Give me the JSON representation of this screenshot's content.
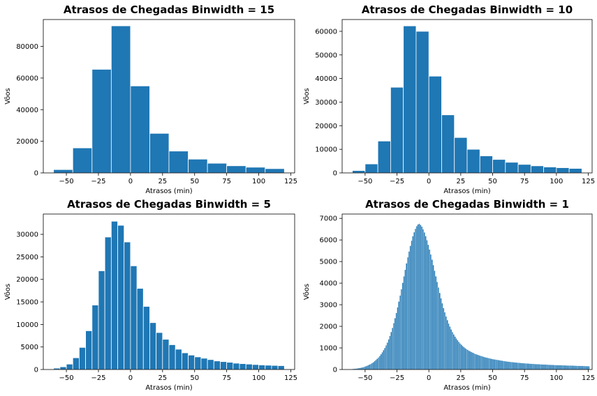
{
  "chart_data": [
    {
      "type": "bar",
      "title": "Atrasos de Chegadas Binwidth = 15",
      "xlabel": "Atrasos (min)",
      "ylabel": "Vôos",
      "bar_color": "#1f77b4",
      "edge_color": "#ffffff",
      "xlim": [
        -68,
        128
      ],
      "ylim": [
        0,
        97000
      ],
      "xticks": [
        -50,
        -25,
        0,
        25,
        50,
        75,
        100,
        125
      ],
      "yticks": [
        0,
        20000,
        40000,
        60000,
        80000
      ],
      "bins": {
        "start": -60,
        "width": 15
      },
      "values": [
        2100,
        15800,
        65500,
        93000,
        55000,
        25000,
        13800,
        8700,
        6100,
        4500,
        3600,
        2700
      ]
    },
    {
      "type": "bar",
      "title": "Atrasos de Chegadas Binwidth = 10",
      "xlabel": "Atrasos (min)",
      "ylabel": "Vôos",
      "bar_color": "#1f77b4",
      "edge_color": "#ffffff",
      "xlim": [
        -68,
        128
      ],
      "ylim": [
        0,
        65000
      ],
      "xticks": [
        -50,
        -25,
        0,
        25,
        50,
        75,
        100,
        125
      ],
      "yticks": [
        0,
        10000,
        20000,
        30000,
        40000,
        50000,
        60000
      ],
      "bins": {
        "start": -60,
        "width": 10
      },
      "values": [
        1000,
        3800,
        13500,
        36300,
        62300,
        60000,
        41000,
        24600,
        15000,
        10000,
        7200,
        5700,
        4500,
        3600,
        3000,
        2500,
        2200,
        1900
      ]
    },
    {
      "type": "bar",
      "title": "Atrasos de Chegadas Binwidth = 5",
      "xlabel": "Atrasos (min)",
      "ylabel": "Vôos",
      "bar_color": "#1f77b4",
      "edge_color": "#ffffff",
      "xlim": [
        -68,
        128
      ],
      "ylim": [
        0,
        34500
      ],
      "xticks": [
        -50,
        -25,
        0,
        25,
        50,
        75,
        100,
        125
      ],
      "yticks": [
        0,
        5000,
        10000,
        15000,
        20000,
        25000,
        30000
      ],
      "bins": {
        "start": -60,
        "width": 5
      },
      "values": [
        300,
        600,
        1200,
        2600,
        4900,
        8600,
        14300,
        21900,
        29400,
        32900,
        32000,
        28300,
        23000,
        18000,
        14000,
        10400,
        8200,
        6700,
        5500,
        4500,
        3700,
        3200,
        2800,
        2500,
        2200,
        1900,
        1750,
        1600,
        1400,
        1300,
        1200,
        1100,
        1000,
        950,
        900,
        850
      ]
    },
    {
      "type": "bar",
      "title": "Atrasos de Chegadas Binwidth = 1",
      "xlabel": "Atrasos (min)",
      "ylabel": "Vôos",
      "bar_color": "#1f77b4",
      "edge_color": "#ffffff",
      "xlim": [
        -68,
        128
      ],
      "ylim": [
        0,
        7200
      ],
      "xticks": [
        -50,
        -25,
        0,
        25,
        50,
        75,
        100,
        125
      ],
      "yticks": [
        0,
        1000,
        2000,
        3000,
        4000,
        5000,
        6000,
        7000
      ],
      "bins": {
        "start": -60,
        "width": 1
      },
      "values": [
        30,
        35,
        40,
        50,
        60,
        70,
        80,
        95,
        110,
        130,
        150,
        175,
        200,
        230,
        260,
        300,
        340,
        390,
        440,
        500,
        560,
        630,
        710,
        800,
        900,
        1000,
        1120,
        1250,
        1400,
        1560,
        1740,
        1930,
        2150,
        2380,
        2620,
        2880,
        3150,
        3430,
        3720,
        4020,
        4320,
        4620,
        4920,
        5200,
        5470,
        5730,
        5970,
        6180,
        6360,
        6520,
        6640,
        6720,
        6750,
        6700,
        6620,
        6500,
        6350,
        6180,
        5990,
        5780,
        5560,
        5330,
        5090,
        4840,
        4580,
        4320,
        4060,
        3800,
        3550,
        3300,
        3070,
        2850,
        2650,
        2460,
        2290,
        2130,
        1990,
        1860,
        1740,
        1630,
        1530,
        1440,
        1360,
        1280,
        1210,
        1150,
        1090,
        1040,
        990,
        950,
        910,
        870,
        840,
        810,
        780,
        750,
        720,
        700,
        680,
        660,
        640,
        620,
        600,
        580,
        565,
        550,
        535,
        520,
        505,
        490,
        480,
        470,
        460,
        450,
        440,
        430,
        420,
        410,
        400,
        390,
        380,
        372,
        365,
        358,
        351,
        344,
        338,
        332,
        326,
        320,
        314,
        308,
        303,
        298,
        293,
        288,
        283,
        279,
        275,
        271,
        267,
        263,
        259,
        255,
        252,
        249,
        246,
        243,
        240,
        237,
        234,
        231,
        228,
        225,
        222,
        219,
        216,
        213,
        210,
        208,
        206,
        204,
        202,
        200,
        198,
        196,
        194,
        192,
        190,
        188,
        186,
        184,
        182,
        180,
        178,
        176,
        174,
        172,
        170,
        168,
        166,
        164,
        162,
        160,
        158,
        156
      ]
    }
  ]
}
